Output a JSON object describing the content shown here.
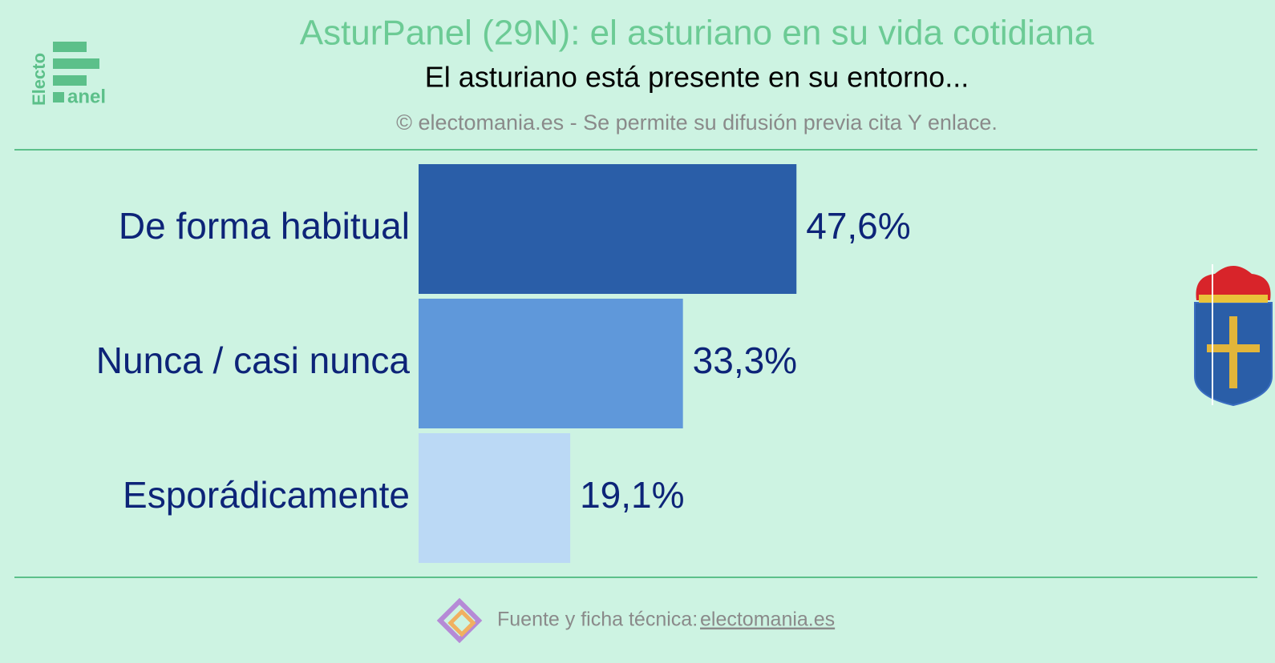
{
  "logo": {
    "top": "Electo",
    "bottom": "anel"
  },
  "chart_data": {
    "type": "bar",
    "orientation": "horizontal",
    "title": "AsturPanel (29N): el asturiano en su vida cotidiana",
    "subtitle": "El asturiano está presente en su entorno...",
    "note": "© electomania.es - Se permite su difusión previa cita Y enlace.",
    "categories": [
      "De forma habitual",
      "Nunca / casi nunca",
      "Esporádicamente"
    ],
    "values": [
      47.6,
      33.3,
      19.1
    ],
    "value_labels": [
      "47,6%",
      "33,3%",
      "19,1%"
    ],
    "colors": [
      "#2a5ea8",
      "#5f98da",
      "#bbd9f5"
    ]
  },
  "footer": {
    "text": "Fuente y ficha técnica:",
    "link": "electomania.es"
  }
}
